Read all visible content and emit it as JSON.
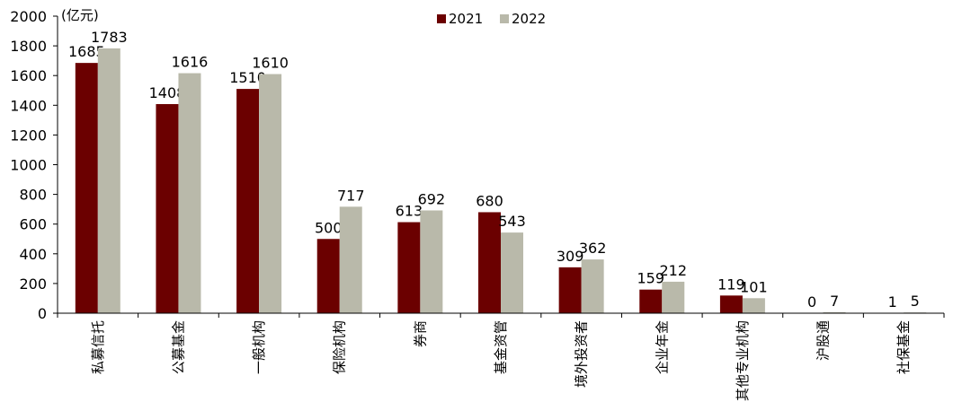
{
  "chart_data": {
    "type": "bar",
    "unit_label": "(亿元)",
    "categories": [
      "私募信托",
      "公募基金",
      "一般机构",
      "保险机构",
      "券商",
      "基金资管",
      "境外投资者",
      "企业年金",
      "其他专业机构",
      "沪股通",
      "社保基金"
    ],
    "series": [
      {
        "name": "2021",
        "values": [
          1685,
          1408,
          1510,
          500,
          613,
          680,
          309,
          159,
          119,
          0,
          1
        ],
        "color": "#6b0000"
      },
      {
        "name": "2022",
        "values": [
          1783,
          1616,
          1610,
          717,
          692,
          543,
          362,
          212,
          101,
          7,
          5
        ],
        "color": "#b9b9aa"
      }
    ],
    "ylim": [
      0,
      2000
    ],
    "yticks": [
      0,
      200,
      400,
      600,
      800,
      1000,
      1200,
      1400,
      1600,
      1800,
      2000
    ],
    "legend_position": "top-center",
    "grid": false
  }
}
